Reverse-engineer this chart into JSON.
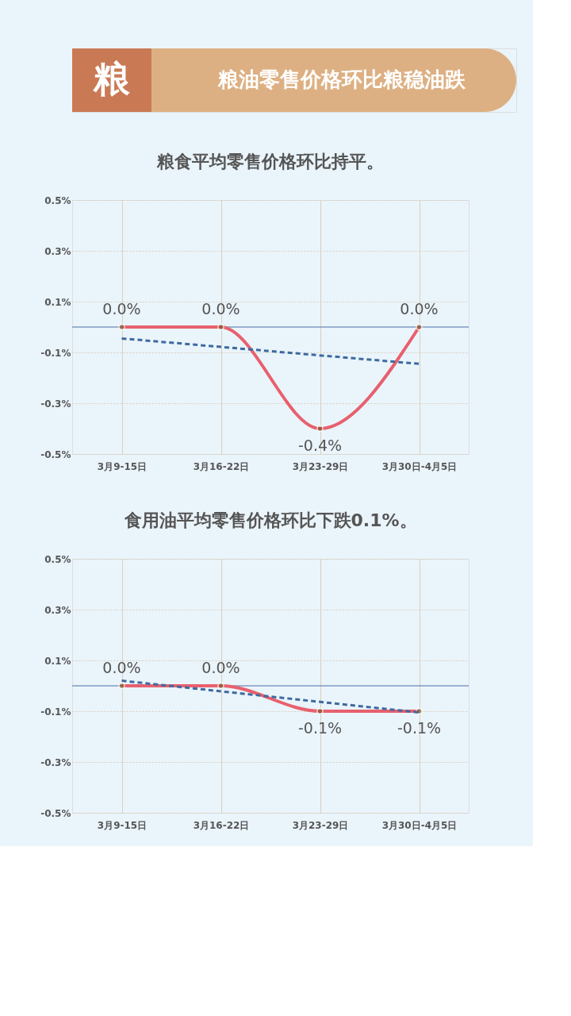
{
  "chart_data": [
    {
      "type": "other",
      "title": "粮油零售价格环比粮稳油跌",
      "annotations": [
        "粮"
      ]
    },
    {
      "type": "line",
      "title": "粮食平均零售价格环比持平。",
      "categories": [
        "3月9-15日",
        "3月16-22日",
        "3月23-29日",
        "3月30日-4月5日"
      ],
      "series": [
        {
          "color": "#e8606e",
          "line_style": "solid",
          "values": [
            0.0,
            0.0,
            -0.4,
            0.0
          ],
          "value_labels": [
            "0.0%",
            "0.0%",
            "-0.4%",
            "0.0%"
          ]
        },
        {
          "type": "line",
          "color": "#3d6aa0",
          "line_style": "dashed",
          "marker": "none",
          "x": [
            "3月9-15日",
            "3月30日-4月5日"
          ],
          "values": [
            -0.045,
            -0.145
          ]
        }
      ],
      "ylim": [
        -0.5,
        0.5
      ],
      "yticks": [
        {
          "value": 0.5,
          "label": "0.5%"
        },
        {
          "value": 0.3,
          "label": "0.3%"
        },
        {
          "value": 0.1,
          "label": "0.1%"
        },
        {
          "value": -0.1,
          "label": "-0.1%"
        },
        {
          "value": -0.3,
          "label": "-0.3%"
        },
        {
          "value": -0.5,
          "label": "-0.5%"
        }
      ],
      "grid": true,
      "marker": "circle",
      "ref_lines": [
        {
          "axis": "y",
          "value": 0,
          "color": "#4a6fa5"
        }
      ]
    },
    {
      "type": "line",
      "title": "食用油平均零售价格环比下跌0.1%。",
      "categories": [
        "3月9-15日",
        "3月16-22日",
        "3月23-29日",
        "3月30日-4月5日"
      ],
      "series": [
        {
          "color": "#e8606e",
          "line_style": "solid",
          "values": [
            0.0,
            0.0,
            -0.1,
            -0.1
          ],
          "value_labels": [
            "0.0%",
            "0.0%",
            "-0.1%",
            "-0.1%"
          ]
        },
        {
          "type": "line",
          "color": "#3d6aa0",
          "line_style": "dashed",
          "marker": "none",
          "x": [
            "3月9-15日",
            "3月30日-4月5日"
          ],
          "values": [
            0.02,
            -0.105
          ]
        }
      ],
      "ylim": [
        -0.5,
        0.5
      ],
      "yticks": [
        {
          "value": 0.5,
          "label": "0.5%"
        },
        {
          "value": 0.3,
          "label": "0.3%"
        },
        {
          "value": 0.1,
          "label": "0.1%"
        },
        {
          "value": -0.1,
          "label": "-0.1%"
        },
        {
          "value": -0.3,
          "label": "-0.3%"
        },
        {
          "value": -0.5,
          "label": "-0.5%"
        }
      ],
      "grid": true,
      "marker": "circle",
      "ref_lines": [
        {
          "axis": "y",
          "value": 0,
          "color": "#4a6fa5"
        }
      ]
    }
  ]
}
